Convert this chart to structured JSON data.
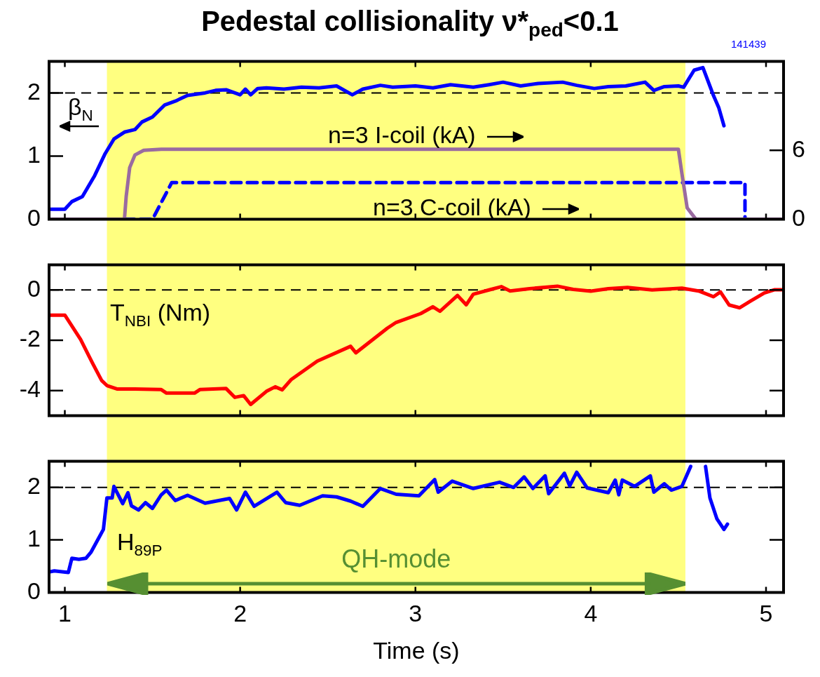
{
  "chart_data": [
    {
      "type": "line",
      "title": "Pedestal collisionality ν*$_{ped}$<0.1",
      "annotations": [
        "141439"
      ],
      "xlim": [
        0.91,
        5.1
      ],
      "xticks": [
        1,
        2,
        3,
        4,
        5
      ],
      "ylim": [
        0,
        2.5
      ],
      "yticks": [
        0,
        1,
        2
      ],
      "y2lim": [
        0,
        13.75
      ],
      "y2ticks": [
        0,
        6
      ],
      "tick_labels": "y",
      "bands": [
        {
          "axis": "x",
          "from": 1.24,
          "to": 4.54,
          "color": "#ffff80"
        }
      ],
      "ref_lines": [
        {
          "axis": "y",
          "value": 2,
          "color": "#000000",
          "line_style": "dashed"
        }
      ],
      "series": [
        {
          "name": "β$_{N}$",
          "color": "#0000ff",
          "x": [
            0.91,
            1.0,
            1.04,
            1.1,
            1.17,
            1.23,
            1.28,
            1.34,
            1.4,
            1.44,
            1.5,
            1.57,
            1.63,
            1.7,
            1.8,
            1.86,
            1.92,
            2.0,
            2.03,
            2.06,
            2.1,
            2.15,
            2.25,
            2.35,
            2.45,
            2.55,
            2.64,
            2.7,
            2.8,
            2.87,
            3.0,
            3.1,
            3.2,
            3.33,
            3.42,
            3.5,
            3.6,
            3.7,
            3.84,
            3.92,
            4.02,
            4.1,
            4.2,
            4.31,
            4.36,
            4.42,
            4.5,
            4.53,
            4.59,
            4.64,
            4.7,
            4.73,
            4.76
          ],
          "values": [
            0.16,
            0.16,
            0.28,
            0.36,
            0.69,
            1.04,
            1.27,
            1.38,
            1.42,
            1.54,
            1.62,
            1.81,
            1.87,
            1.96,
            2.0,
            2.04,
            2.05,
            1.97,
            2.06,
            1.97,
            2.07,
            2.08,
            2.06,
            2.09,
            2.08,
            2.11,
            1.97,
            2.06,
            2.12,
            2.09,
            2.11,
            2.08,
            2.13,
            2.09,
            2.13,
            2.17,
            2.11,
            2.15,
            2.17,
            2.12,
            2.07,
            2.1,
            2.11,
            2.17,
            2.04,
            2.1,
            2.11,
            2.09,
            2.36,
            2.4,
            1.96,
            1.77,
            1.48
          ]
        },
        {
          "name": "n=3 I-coil (kA)",
          "color": "#9a6ba0",
          "axis": "y2",
          "x": [
            0.91,
            1.34,
            1.35,
            1.37,
            1.4,
            1.45,
            1.55,
            2.0,
            3.0,
            4.0,
            4.5,
            4.52,
            4.55,
            4.6,
            5.1
          ],
          "values": [
            0,
            0,
            2.0,
            4.5,
            5.6,
            6.0,
            6.1,
            6.1,
            6.1,
            6.1,
            6.1,
            4.0,
            1.0,
            0,
            0
          ]
        },
        {
          "name": "n=3 C-coil (kA)",
          "color": "#0000ff",
          "axis": "y2",
          "line_style": "dashed",
          "x": [
            1.34,
            1.5,
            1.61,
            4.88,
            4.88
          ],
          "values": [
            0,
            0,
            3.2,
            3.2,
            0
          ]
        }
      ]
    },
    {
      "type": "line",
      "xlim": [
        0.91,
        5.1
      ],
      "xticks": [
        1,
        2,
        3,
        4,
        5
      ],
      "ylim": [
        -5,
        1
      ],
      "yticks": [
        -4,
        -2,
        0
      ],
      "tick_labels": "y",
      "bands": [
        {
          "axis": "x",
          "from": 1.24,
          "to": 4.54,
          "color": "#ffff80"
        }
      ],
      "ref_lines": [
        {
          "axis": "y",
          "value": 0,
          "color": "#000000",
          "line_style": "dashed"
        }
      ],
      "series": [
        {
          "name": "T$_{NBI}$ (Nm)",
          "color": "#ff0000",
          "x": [
            0.91,
            1.0,
            1.09,
            1.16,
            1.21,
            1.24,
            1.3,
            1.4,
            1.55,
            1.58,
            1.74,
            1.77,
            1.92,
            1.97,
            2.02,
            2.06,
            2.15,
            2.2,
            2.24,
            2.29,
            2.44,
            2.63,
            2.66,
            2.84,
            2.89,
            3.03,
            3.1,
            3.14,
            3.24,
            3.29,
            3.33,
            3.42,
            3.49,
            3.54,
            3.65,
            3.81,
            3.9,
            4.0,
            4.1,
            4.21,
            4.35,
            4.52,
            4.62,
            4.7,
            4.74,
            4.79,
            4.85,
            4.91,
            4.99,
            5.05,
            5.09
          ],
          "values": [
            -1.0,
            -1.0,
            -1.97,
            -2.94,
            -3.6,
            -3.8,
            -3.94,
            -3.94,
            -3.96,
            -4.1,
            -4.1,
            -3.96,
            -3.92,
            -4.27,
            -4.2,
            -4.55,
            -4.03,
            -3.85,
            -3.97,
            -3.57,
            -2.83,
            -2.24,
            -2.5,
            -1.52,
            -1.29,
            -0.94,
            -0.67,
            -0.85,
            -0.22,
            -0.59,
            -0.17,
            0,
            0.13,
            -0.04,
            0.05,
            0.15,
            0.02,
            -0.05,
            0.05,
            0.1,
            0.0,
            0.07,
            -0.05,
            -0.27,
            -0.08,
            -0.6,
            -0.71,
            -0.45,
            -0.12,
            0.01,
            0.01
          ]
        }
      ]
    },
    {
      "type": "line",
      "xlabel": "Time (s)",
      "annotations": [
        "QH-mode"
      ],
      "xlim": [
        0.91,
        5.1
      ],
      "xticks": [
        1,
        2,
        3,
        4,
        5
      ],
      "ylim": [
        0,
        2.5
      ],
      "yticks": [
        0,
        1,
        2
      ],
      "bands": [
        {
          "axis": "x",
          "from": 1.24,
          "to": 4.54,
          "color": "#ffff80"
        }
      ],
      "ref_lines": [
        {
          "axis": "y",
          "value": 2,
          "color": "#000000",
          "line_style": "dashed"
        }
      ],
      "series": [
        {
          "name": "H$_{89P}$",
          "color": "#0000ff",
          "x": [
            0.91,
            0.94,
            1.02,
            1.04,
            1.08,
            1.12,
            1.15,
            1.22,
            1.24,
            1.27,
            1.28,
            1.33,
            1.36,
            1.38,
            1.42,
            1.46,
            1.5,
            1.55,
            1.58,
            1.63,
            1.7,
            1.8,
            1.94,
            1.98,
            2.03,
            2.08,
            2.21,
            2.26,
            2.34,
            2.47,
            2.55,
            2.63,
            2.7,
            2.8,
            2.89,
            3.02,
            3.11,
            3.13,
            3.21,
            3.33,
            3.48,
            3.56,
            3.62,
            3.67,
            3.74,
            3.76,
            3.85,
            3.88,
            3.92,
            3.98,
            4.1,
            4.14,
            4.16,
            4.18,
            4.25,
            4.34,
            4.36,
            4.42,
            4.46,
            4.52,
            4.57,
            4.615,
            4.655,
            4.68,
            4.72,
            4.76,
            4.78
          ],
          "values": [
            0.39,
            0.41,
            0.38,
            0.65,
            0.63,
            0.65,
            0.77,
            1.2,
            1.8,
            1.8,
            2.02,
            1.69,
            1.9,
            1.65,
            1.57,
            1.71,
            1.6,
            1.86,
            1.95,
            1.75,
            1.85,
            1.7,
            1.79,
            1.57,
            1.91,
            1.64,
            1.91,
            1.71,
            1.66,
            1.84,
            1.82,
            1.74,
            1.64,
            1.98,
            1.87,
            1.84,
            2.15,
            1.91,
            2.12,
            1.98,
            2.1,
            2.0,
            2.2,
            1.98,
            2.22,
            1.88,
            2.27,
            2.03,
            2.29,
            1.99,
            1.9,
            2.14,
            1.86,
            2.14,
            2.02,
            2.22,
            1.91,
            2.07,
            1.95,
            2.02,
            2.4,
            null,
            2.4,
            1.8,
            1.4,
            1.2,
            1.3
          ]
        }
      ]
    }
  ]
}
